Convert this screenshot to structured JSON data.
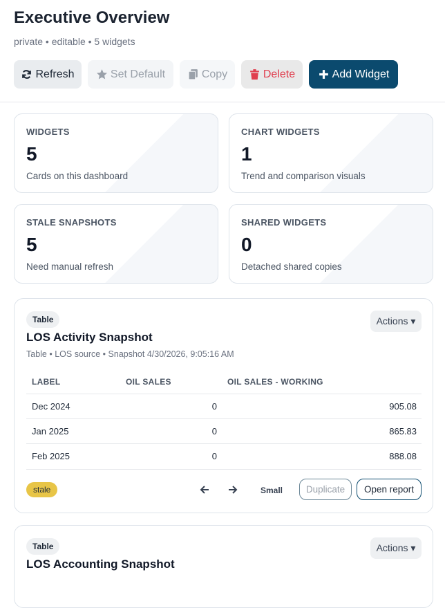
{
  "header": {
    "title": "Executive Overview",
    "meta": "private • editable • 5 widgets",
    "buttons": [
      "Refresh",
      "Set Default",
      "Copy",
      "Delete",
      "Add Widget"
    ]
  },
  "stats": [
    {
      "label": "WIDGETS",
      "value": 5,
      "note": "Cards on this dashboard"
    },
    {
      "label": "CHART WIDGETS",
      "value": 1,
      "note": "Trend and comparison visuals"
    },
    {
      "label": "STALE SNAPSHOTS",
      "value": 5,
      "note": "Need manual refresh"
    },
    {
      "label": "SHARED WIDGETS",
      "value": 0,
      "note": "Detached shared copies"
    }
  ],
  "widgets": [
    {
      "badge": "Table",
      "title": "LOS Activity Snapshot",
      "actions": "Actions",
      "meta": "Table • LOS source • Snapshot 4/30/2026, 9:05:16 AM",
      "table": {
        "columns": [
          "LABEL",
          "OIL SALES",
          "OIL SALES - WORKING"
        ],
        "rows": [
          [
            "Dec 2024",
            0,
            905.08
          ],
          [
            "Jan 2025",
            0,
            865.83
          ],
          [
            "Feb 2025",
            0,
            888.08
          ]
        ]
      },
      "footer": {
        "status": "stale",
        "size": "Small",
        "buttons": [
          "Duplicate",
          "Open report"
        ]
      }
    },
    {
      "badge": "Table",
      "title": "LOS Accounting Snapshot",
      "actions": "Actions"
    }
  ]
}
